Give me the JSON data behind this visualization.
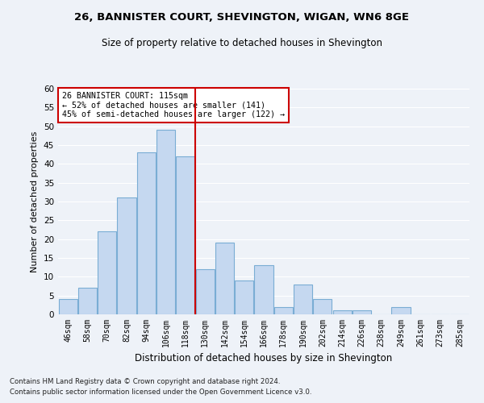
{
  "title1": "26, BANNISTER COURT, SHEVINGTON, WIGAN, WN6 8GE",
  "title2": "Size of property relative to detached houses in Shevington",
  "xlabel": "Distribution of detached houses by size in Shevington",
  "ylabel": "Number of detached properties",
  "bar_labels": [
    "46sqm",
    "58sqm",
    "70sqm",
    "82sqm",
    "94sqm",
    "106sqm",
    "118sqm",
    "130sqm",
    "142sqm",
    "154sqm",
    "166sqm",
    "178sqm",
    "190sqm",
    "202sqm",
    "214sqm",
    "226sqm",
    "238sqm",
    "249sqm",
    "261sqm",
    "273sqm",
    "285sqm"
  ],
  "bar_values": [
    4,
    7,
    22,
    31,
    43,
    49,
    42,
    12,
    19,
    9,
    13,
    2,
    8,
    4,
    1,
    1,
    0,
    2,
    0,
    0,
    0
  ],
  "bar_color": "#c5d8f0",
  "bar_edgecolor": "#7aadd4",
  "property_line_x": 6.5,
  "vline_color": "#cc0000",
  "annotation_text": "26 BANNISTER COURT: 115sqm\n← 52% of detached houses are smaller (141)\n45% of semi-detached houses are larger (122) →",
  "annotation_box_color": "#ffffff",
  "annotation_box_edgecolor": "#cc0000",
  "ylim": [
    0,
    60
  ],
  "yticks": [
    0,
    5,
    10,
    15,
    20,
    25,
    30,
    35,
    40,
    45,
    50,
    55,
    60
  ],
  "footnote1": "Contains HM Land Registry data © Crown copyright and database right 2024.",
  "footnote2": "Contains public sector information licensed under the Open Government Licence v3.0.",
  "bg_color": "#eef2f8",
  "grid_color": "#ffffff"
}
